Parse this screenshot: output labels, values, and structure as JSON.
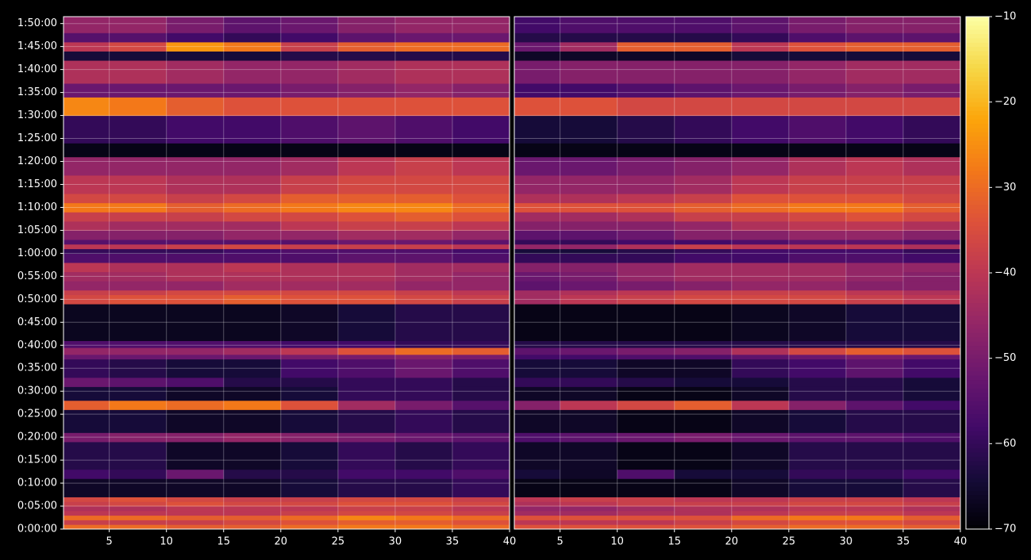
{
  "chart_data": {
    "type": "heatmap",
    "colormap": "inferno",
    "grid": true,
    "x_edges": [
      1,
      5,
      10,
      15,
      20,
      25,
      30,
      35,
      40
    ],
    "y_edges": [
      0,
      60,
      120,
      180,
      240,
      300,
      360,
      420,
      660,
      780,
      1140,
      1260,
      1560,
      1680,
      1860,
      1980,
      2220,
      2280,
      2370,
      2460,
      2940,
      3060,
      3120,
      3240,
      3360,
      3480,
      3600,
      3660,
      3720,
      3780,
      3900,
      4020,
      4140,
      4260,
      4380,
      4620,
      4860,
      5040,
      5400,
      5640,
      5820,
      6120,
      6240,
      6360,
      6480,
      6690
    ],
    "ylim": [
      0,
      6690
    ],
    "yticks": [
      {
        "value": 0,
        "label": "0:00:00"
      },
      {
        "value": 300,
        "label": "0:05:00"
      },
      {
        "value": 600,
        "label": "0:10:00"
      },
      {
        "value": 900,
        "label": "0:15:00"
      },
      {
        "value": 1200,
        "label": "0:20:00"
      },
      {
        "value": 1500,
        "label": "0:25:00"
      },
      {
        "value": 1800,
        "label": "0:30:00"
      },
      {
        "value": 2100,
        "label": "0:35:00"
      },
      {
        "value": 2400,
        "label": "0:40:00"
      },
      {
        "value": 2700,
        "label": "0:45:00"
      },
      {
        "value": 3000,
        "label": "0:50:00"
      },
      {
        "value": 3300,
        "label": "0:55:00"
      },
      {
        "value": 3600,
        "label": "1:00:00"
      },
      {
        "value": 3900,
        "label": "1:05:00"
      },
      {
        "value": 4200,
        "label": "1:10:00"
      },
      {
        "value": 4500,
        "label": "1:15:00"
      },
      {
        "value": 4800,
        "label": "1:20:00"
      },
      {
        "value": 5100,
        "label": "1:25:00"
      },
      {
        "value": 5400,
        "label": "1:30:00"
      },
      {
        "value": 5700,
        "label": "1:35:00"
      },
      {
        "value": 6000,
        "label": "1:40:00"
      },
      {
        "value": 6300,
        "label": "1:45:00"
      },
      {
        "value": 6600,
        "label": "1:50:00"
      }
    ],
    "zlim": [
      -70,
      -10
    ],
    "zticks": [
      {
        "value": -70,
        "label": "−70"
      },
      {
        "value": -60,
        "label": "−60"
      },
      {
        "value": -50,
        "label": "−50"
      },
      {
        "value": -40,
        "label": "−40"
      },
      {
        "value": -30,
        "label": "−30"
      },
      {
        "value": -20,
        "label": "−20"
      },
      {
        "value": -10,
        "label": "−10"
      }
    ],
    "panels": [
      {
        "xlim": [
          1,
          40
        ],
        "xticks": [
          5,
          10,
          15,
          20,
          25,
          30,
          35,
          40
        ],
        "values": [
          [
            -30,
            -30,
            -32,
            -32,
            -30,
            -28,
            -28,
            -30
          ],
          [
            -38,
            -38,
            -38,
            -36,
            -34,
            -32,
            -32,
            -34
          ],
          [
            -30,
            -30,
            -32,
            -32,
            -30,
            -26,
            -28,
            -30
          ],
          [
            -40,
            -40,
            -40,
            -40,
            -38,
            -36,
            -36,
            -38
          ],
          [
            -42,
            -42,
            -40,
            -40,
            -40,
            -38,
            -38,
            -40
          ],
          [
            -38,
            -36,
            -34,
            -36,
            -36,
            -34,
            -34,
            -36
          ],
          [
            -36,
            -34,
            -36,
            -38,
            -38,
            -36,
            -36,
            -38
          ],
          [
            -66,
            -66,
            -66,
            -66,
            -64,
            -62,
            -62,
            -60
          ],
          [
            -58,
            -60,
            -52,
            -62,
            -62,
            -58,
            -58,
            -56
          ],
          [
            -62,
            -62,
            -66,
            -66,
            -64,
            -60,
            -62,
            -60
          ],
          [
            -50,
            -48,
            -48,
            -46,
            -48,
            -50,
            -52,
            -54
          ],
          [
            -64,
            -64,
            -66,
            -66,
            -64,
            -62,
            -60,
            -62
          ],
          [
            -32,
            -28,
            -30,
            -28,
            -34,
            -44,
            -50,
            -55
          ],
          [
            -64,
            -64,
            -66,
            -66,
            -64,
            -60,
            -60,
            -62
          ],
          [
            -52,
            -54,
            -56,
            -62,
            -62,
            -60,
            -60,
            -62
          ],
          [
            -60,
            -62,
            -64,
            -64,
            -58,
            -56,
            -52,
            -56
          ],
          [
            -52,
            -52,
            -52,
            -52,
            -50,
            -50,
            -48,
            -50
          ],
          [
            -46,
            -46,
            -46,
            -44,
            -40,
            -34,
            -30,
            -32
          ],
          [
            -56,
            -56,
            -56,
            -56,
            -58,
            -58,
            -60,
            -60
          ],
          [
            -67,
            -67,
            -67,
            -67,
            -66,
            -64,
            -62,
            -62
          ],
          [
            -36,
            -34,
            -34,
            -32,
            -34,
            -34,
            -36,
            -38
          ],
          [
            -38,
            -38,
            -36,
            -36,
            -36,
            -36,
            -38,
            -40
          ],
          [
            -46,
            -46,
            -46,
            -44,
            -44,
            -44,
            -46,
            -46
          ],
          [
            -44,
            -44,
            -42,
            -42,
            -42,
            -42,
            -44,
            -46
          ],
          [
            -40,
            -42,
            -42,
            -40,
            -42,
            -42,
            -44,
            -44
          ],
          [
            -56,
            -56,
            -56,
            -56,
            -56,
            -54,
            -54,
            -56
          ],
          [
            -60,
            -60,
            -60,
            -58,
            -56,
            -56,
            -56,
            -58
          ],
          [
            -40,
            -40,
            -38,
            -36,
            -38,
            -38,
            -38,
            -40
          ],
          [
            -55,
            -55,
            -55,
            -55,
            -55,
            -52,
            -52,
            -54
          ],
          [
            -48,
            -48,
            -48,
            -46,
            -46,
            -44,
            -44,
            -46
          ],
          [
            -42,
            -44,
            -44,
            -44,
            -40,
            -38,
            -38,
            -40
          ],
          [
            -38,
            -38,
            -38,
            -36,
            -36,
            -34,
            -32,
            -34
          ],
          [
            -28,
            -28,
            -32,
            -30,
            -28,
            -26,
            -26,
            -30
          ],
          [
            -36,
            -36,
            -38,
            -36,
            -32,
            -32,
            -32,
            -34
          ],
          [
            -40,
            -40,
            -42,
            -42,
            -38,
            -36,
            -36,
            -36
          ],
          [
            -46,
            -46,
            -46,
            -46,
            -44,
            -40,
            -38,
            -40
          ],
          [
            -68,
            -68,
            -68,
            -68,
            -68,
            -68,
            -68,
            -68
          ],
          [
            -60,
            -60,
            -58,
            -58,
            -56,
            -54,
            -56,
            -58
          ],
          [
            -26,
            -28,
            -32,
            -34,
            -34,
            -34,
            -34,
            -34
          ],
          [
            -52,
            -52,
            -52,
            -52,
            -50,
            -48,
            -46,
            -48
          ],
          [
            -42,
            -42,
            -44,
            -46,
            -46,
            -44,
            -42,
            -42
          ],
          [
            -64,
            -64,
            -64,
            -64,
            -62,
            -62,
            -62,
            -62
          ],
          [
            -40,
            -36,
            -24,
            -28,
            -38,
            -32,
            -30,
            -30
          ],
          [
            -55,
            -55,
            -58,
            -60,
            -58,
            -54,
            -52,
            -52
          ],
          [
            -46,
            -46,
            -50,
            -54,
            -52,
            -48,
            -46,
            -46
          ]
        ]
      },
      {
        "xlim": [
          1,
          40
        ],
        "xticks": [
          5,
          10,
          15,
          20,
          25,
          30,
          35,
          40
        ],
        "values": [
          [
            -34,
            -34,
            -34,
            -34,
            -32,
            -30,
            -30,
            -32
          ],
          [
            -40,
            -40,
            -40,
            -38,
            -36,
            -34,
            -34,
            -36
          ],
          [
            -34,
            -34,
            -34,
            -34,
            -30,
            -28,
            -28,
            -32
          ],
          [
            -44,
            -44,
            -42,
            -42,
            -40,
            -38,
            -38,
            -40
          ],
          [
            -46,
            -46,
            -44,
            -42,
            -42,
            -40,
            -40,
            -42
          ],
          [
            -42,
            -40,
            -38,
            -38,
            -38,
            -36,
            -36,
            -38
          ],
          [
            -40,
            -38,
            -38,
            -40,
            -40,
            -38,
            -38,
            -40
          ],
          [
            -68,
            -68,
            -68,
            -68,
            -66,
            -64,
            -64,
            -62
          ],
          [
            -64,
            -66,
            -56,
            -64,
            -64,
            -60,
            -60,
            -58
          ],
          [
            -66,
            -66,
            -68,
            -68,
            -66,
            -62,
            -62,
            -62
          ],
          [
            -56,
            -54,
            -52,
            -50,
            -52,
            -54,
            -54,
            -56
          ],
          [
            -66,
            -66,
            -68,
            -68,
            -66,
            -64,
            -62,
            -62
          ],
          [
            -48,
            -40,
            -36,
            -32,
            -40,
            -48,
            -54,
            -58
          ],
          [
            -66,
            -66,
            -68,
            -68,
            -66,
            -62,
            -62,
            -64
          ],
          [
            -60,
            -60,
            -62,
            -64,
            -64,
            -62,
            -62,
            -64
          ],
          [
            -64,
            -64,
            -66,
            -66,
            -60,
            -58,
            -54,
            -58
          ],
          [
            -58,
            -58,
            -56,
            -56,
            -54,
            -52,
            -50,
            -52
          ],
          [
            -54,
            -52,
            -50,
            -48,
            -42,
            -36,
            -32,
            -34
          ],
          [
            -62,
            -62,
            -62,
            -62,
            -62,
            -62,
            -62,
            -62
          ],
          [
            -68,
            -68,
            -68,
            -68,
            -67,
            -66,
            -64,
            -64
          ],
          [
            -44,
            -40,
            -38,
            -36,
            -36,
            -36,
            -38,
            -40
          ],
          [
            -44,
            -42,
            -40,
            -38,
            -38,
            -38,
            -40,
            -42
          ],
          [
            -54,
            -52,
            -50,
            -48,
            -46,
            -46,
            -48,
            -48
          ],
          [
            -52,
            -50,
            -46,
            -44,
            -44,
            -44,
            -46,
            -48
          ],
          [
            -48,
            -48,
            -46,
            -44,
            -44,
            -44,
            -46,
            -46
          ],
          [
            -60,
            -60,
            -60,
            -58,
            -58,
            -56,
            -56,
            -58
          ],
          [
            -64,
            -64,
            -62,
            -60,
            -58,
            -58,
            -58,
            -60
          ],
          [
            -46,
            -46,
            -42,
            -38,
            -40,
            -40,
            -40,
            -42
          ],
          [
            -60,
            -60,
            -58,
            -58,
            -56,
            -54,
            -54,
            -56
          ],
          [
            -54,
            -54,
            -52,
            -48,
            -48,
            -46,
            -46,
            -48
          ],
          [
            -48,
            -48,
            -48,
            -46,
            -42,
            -40,
            -40,
            -42
          ],
          [
            -44,
            -44,
            -42,
            -38,
            -38,
            -36,
            -34,
            -36
          ],
          [
            -34,
            -34,
            -34,
            -32,
            -30,
            -28,
            -28,
            -32
          ],
          [
            -42,
            -42,
            -40,
            -38,
            -34,
            -34,
            -34,
            -36
          ],
          [
            -46,
            -46,
            -46,
            -44,
            -40,
            -38,
            -38,
            -38
          ],
          [
            -52,
            -52,
            -50,
            -48,
            -46,
            -42,
            -40,
            -42
          ],
          [
            -68,
            -68,
            -68,
            -68,
            -68,
            -68,
            -68,
            -68
          ],
          [
            -64,
            -64,
            -62,
            -60,
            -58,
            -56,
            -58,
            -60
          ],
          [
            -34,
            -34,
            -36,
            -36,
            -36,
            -36,
            -36,
            -36
          ],
          [
            -58,
            -58,
            -56,
            -54,
            -52,
            -50,
            -48,
            -50
          ],
          [
            -50,
            -48,
            -48,
            -48,
            -48,
            -46,
            -44,
            -44
          ],
          [
            -66,
            -66,
            -66,
            -66,
            -64,
            -64,
            -64,
            -64
          ],
          [
            -52,
            -44,
            -32,
            -32,
            -40,
            -34,
            -32,
            -32
          ],
          [
            -62,
            -62,
            -62,
            -62,
            -60,
            -56,
            -54,
            -54
          ],
          [
            -58,
            -56,
            -56,
            -56,
            -54,
            -50,
            -48,
            -48
          ]
        ]
      }
    ]
  }
}
